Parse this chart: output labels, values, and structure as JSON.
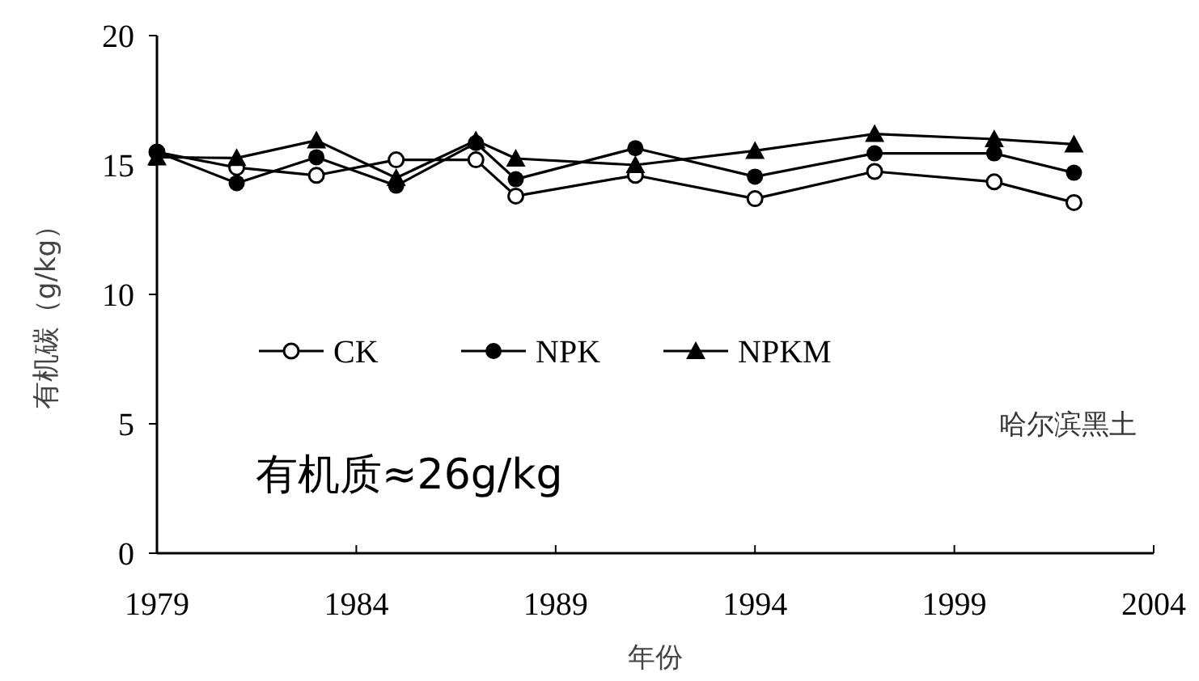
{
  "chart_data": {
    "type": "line",
    "xlabel": "年份",
    "ylabel": "有机碳（g/kg）",
    "x": [
      1979,
      1981,
      1983,
      1985,
      1987,
      1988,
      1991,
      1994,
      1997,
      2000,
      2002
    ],
    "series": [
      {
        "name": "CK",
        "color": "#000000",
        "marker": "open circle",
        "values": [
          15.5,
          14.9,
          14.6,
          15.2,
          15.2,
          13.8,
          14.6,
          13.7,
          14.75,
          14.35,
          13.55
        ]
      },
      {
        "name": "NPK",
        "color": "#000000",
        "marker": "circle",
        "values": [
          15.5,
          14.3,
          15.3,
          14.2,
          15.85,
          14.45,
          15.65,
          14.55,
          15.45,
          15.45,
          14.7
        ]
      },
      {
        "name": "NPKM",
        "color": "#000000",
        "marker": "triangle",
        "values": [
          15.3,
          15.27,
          15.95,
          14.5,
          15.95,
          15.25,
          15.0,
          15.55,
          16.2,
          16.0,
          15.8
        ]
      }
    ],
    "xlim": [
      1979,
      2004
    ],
    "xticks": [
      1979,
      1984,
      1989,
      1994,
      1999,
      2004
    ],
    "ylim": [
      0,
      20
    ],
    "yticks": [
      0,
      5,
      10,
      15,
      20
    ],
    "grid": false,
    "legend": "left",
    "line_style": "solid",
    "annotations": [
      "哈尔滨黑土",
      "有机质≈26g/kg"
    ]
  }
}
